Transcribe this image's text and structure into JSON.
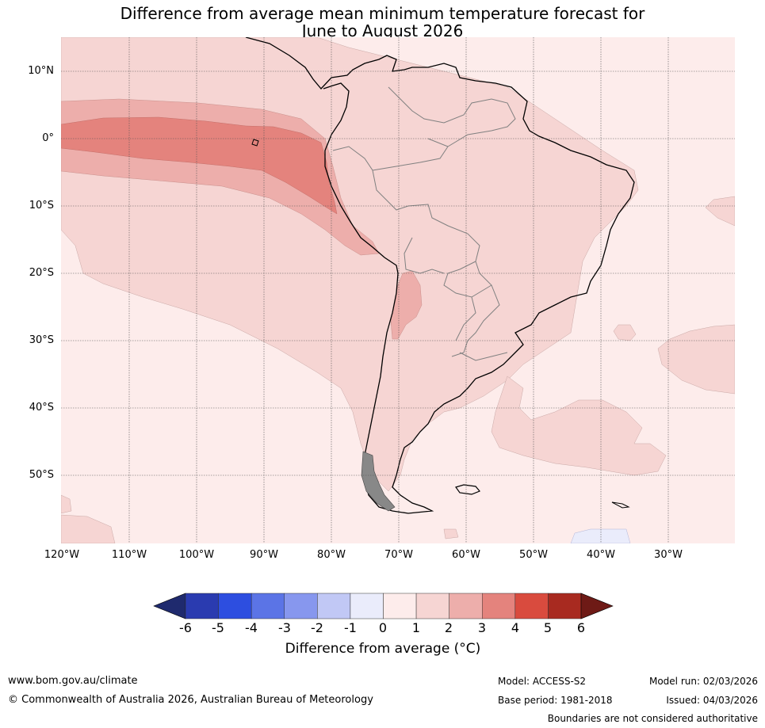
{
  "title_line1": "Difference from average mean minimum temperature forecast for",
  "title_line2": "June to August 2026",
  "lat_labels": [
    "10°N",
    "0°",
    "10°S",
    "20°S",
    "30°S",
    "40°S",
    "50°S"
  ],
  "lon_labels": [
    "120°W",
    "110°W",
    "100°W",
    "90°W",
    "80°W",
    "70°W",
    "60°W",
    "50°W",
    "40°W",
    "30°W"
  ],
  "colorbar": {
    "ticks": [
      "-6",
      "-5",
      "-4",
      "-3",
      "-2",
      "-1",
      "0",
      "1",
      "2",
      "3",
      "4",
      "5",
      "6"
    ],
    "colors": [
      "#1f2a6e",
      "#2a3bb0",
      "#2d4ee0",
      "#5b74e6",
      "#8797ee",
      "#c1c8f5",
      "#eaecfb",
      "#fdeceb",
      "#f6d5d3",
      "#edaeab",
      "#e4837d",
      "#d94b3e",
      "#a82a20",
      "#6e1a16"
    ],
    "label": "Difference from average (°C)"
  },
  "footer": {
    "website": "www.bom.gov.au/climate",
    "copyright": "© Commonwealth of Australia 2026, Australian Bureau of Meteorology",
    "model": "Model: ACCESS-S2",
    "base_period": "Base period: 1981-2018",
    "model_run": "Model run: 02/03/2026",
    "issued": "Issued: 04/03/2026",
    "disclaimer": "Boundaries are not considered authoritative"
  }
}
